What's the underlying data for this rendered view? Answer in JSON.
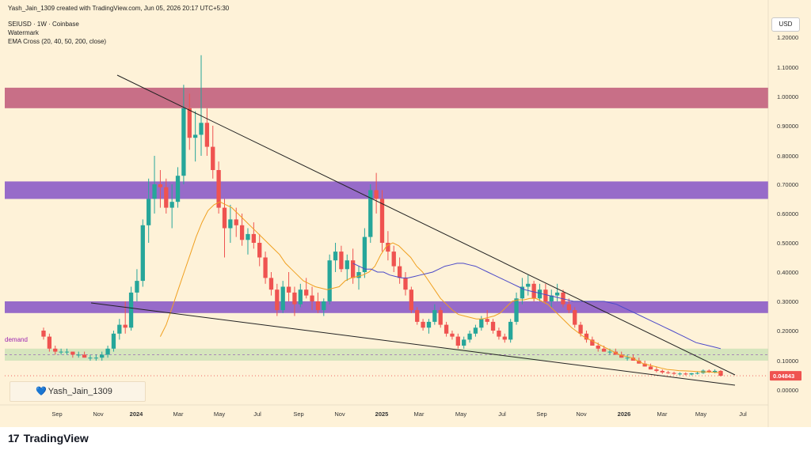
{
  "header": {
    "attribution": "Yash_Jain_1309 created with TradingView.com, Jun 05, 2026 20:17 UTC+5:30",
    "symbol_line": "SEIUSD · 1W · Coinbase",
    "watermark_label": "Watermark",
    "indicator_label": "EMA Cross (20, 40, 50, 200, close)"
  },
  "currency_button": "USD",
  "author_badge": {
    "icon": "blue-heart-icon",
    "text": "Yash_Jain_1309"
  },
  "logo_text": "TradingView",
  "colors": {
    "background": "#fef2d8",
    "bull_candle": "#26a69a",
    "bear_candle": "#ef5350",
    "ema_fast": "#f0a020",
    "ema_slow": "#4b49c8",
    "resistance_zone_top": "#c2607e",
    "resistance_zone_mid": "#8c5cc8",
    "support_zone": "#8c5cc8",
    "demand_zone": "#cfe3b8",
    "price_tag": "#ef5350"
  },
  "chart_data": {
    "type": "candlestick",
    "symbol": "SEIUSD",
    "interval": "1W",
    "exchange": "Coinbase",
    "y_axis": {
      "ticks": [
        "1.20000",
        "1.10000",
        "1.00000",
        "0.90000",
        "0.80000",
        "0.70000",
        "0.60000",
        "0.50000",
        "0.40000",
        "0.30000",
        "0.20000",
        "0.10000",
        "0.00000"
      ],
      "range": [
        -0.01,
        1.27
      ],
      "scale": "log-like"
    },
    "x_axis": {
      "ticks": [
        "Sep",
        "Nov",
        "2024",
        "Mar",
        "May",
        "Jul",
        "Sep",
        "Nov",
        "2025",
        "Mar",
        "May",
        "Jul",
        "Sep",
        "Nov",
        "2026",
        "Mar",
        "May",
        "Jul"
      ]
    },
    "last_price": "0.04843",
    "zones": [
      {
        "name": "resistance-zone-top",
        "from": 0.96,
        "to": 1.03
      },
      {
        "name": "resistance-zone-mid",
        "from": 0.65,
        "to": 0.71
      },
      {
        "name": "support-zone",
        "from": 0.26,
        "to": 0.3
      },
      {
        "name": "demand-zone",
        "label": "demand",
        "from": 0.1,
        "to": 0.14
      }
    ],
    "candles": [
      [
        0.2,
        0.21,
        0.17,
        0.18
      ],
      [
        0.18,
        0.19,
        0.13,
        0.14
      ],
      [
        0.14,
        0.15,
        0.12,
        0.13
      ],
      [
        0.13,
        0.14,
        0.12,
        0.13
      ],
      [
        0.13,
        0.14,
        0.12,
        0.13
      ],
      [
        0.13,
        0.13,
        0.11,
        0.12
      ],
      [
        0.12,
        0.13,
        0.11,
        0.12
      ],
      [
        0.12,
        0.13,
        0.11,
        0.11
      ],
      [
        0.11,
        0.12,
        0.1,
        0.11
      ],
      [
        0.11,
        0.12,
        0.1,
        0.11
      ],
      [
        0.11,
        0.13,
        0.1,
        0.12
      ],
      [
        0.12,
        0.15,
        0.11,
        0.14
      ],
      [
        0.14,
        0.2,
        0.13,
        0.19
      ],
      [
        0.19,
        0.24,
        0.17,
        0.22
      ],
      [
        0.22,
        0.3,
        0.19,
        0.21
      ],
      [
        0.21,
        0.35,
        0.2,
        0.33
      ],
      [
        0.33,
        0.41,
        0.3,
        0.37
      ],
      [
        0.37,
        0.58,
        0.35,
        0.56
      ],
      [
        0.56,
        0.72,
        0.5,
        0.65
      ],
      [
        0.65,
        0.8,
        0.6,
        0.7
      ],
      [
        0.7,
        0.75,
        0.62,
        0.69
      ],
      [
        0.69,
        0.72,
        0.6,
        0.62
      ],
      [
        0.62,
        0.7,
        0.55,
        0.64
      ],
      [
        0.64,
        0.76,
        0.62,
        0.73
      ],
      [
        0.73,
        1.04,
        0.7,
        0.96
      ],
      [
        0.96,
        1.01,
        0.82,
        0.86
      ],
      [
        0.86,
        0.95,
        0.78,
        0.87
      ],
      [
        0.87,
        1.14,
        0.8,
        0.91
      ],
      [
        0.91,
        0.96,
        0.8,
        0.83
      ],
      [
        0.83,
        0.9,
        0.72,
        0.75
      ],
      [
        0.75,
        0.78,
        0.6,
        0.62
      ],
      [
        0.62,
        0.65,
        0.45,
        0.55
      ],
      [
        0.55,
        0.63,
        0.5,
        0.58
      ],
      [
        0.58,
        0.62,
        0.52,
        0.56
      ],
      [
        0.56,
        0.6,
        0.49,
        0.51
      ],
      [
        0.51,
        0.55,
        0.46,
        0.53
      ],
      [
        0.53,
        0.57,
        0.48,
        0.5
      ],
      [
        0.5,
        0.53,
        0.42,
        0.45
      ],
      [
        0.45,
        0.47,
        0.36,
        0.38
      ],
      [
        0.38,
        0.4,
        0.32,
        0.34
      ],
      [
        0.34,
        0.36,
        0.25,
        0.27
      ],
      [
        0.27,
        0.37,
        0.26,
        0.35
      ],
      [
        0.35,
        0.4,
        0.3,
        0.33
      ],
      [
        0.33,
        0.35,
        0.25,
        0.29
      ],
      [
        0.29,
        0.36,
        0.28,
        0.34
      ],
      [
        0.34,
        0.38,
        0.31,
        0.32
      ],
      [
        0.32,
        0.35,
        0.27,
        0.3
      ],
      [
        0.3,
        0.33,
        0.26,
        0.27
      ],
      [
        0.27,
        0.31,
        0.25,
        0.3
      ],
      [
        0.3,
        0.46,
        0.29,
        0.44
      ],
      [
        0.44,
        0.5,
        0.4,
        0.47
      ],
      [
        0.47,
        0.49,
        0.4,
        0.41
      ],
      [
        0.41,
        0.46,
        0.37,
        0.44
      ],
      [
        0.44,
        0.48,
        0.36,
        0.38
      ],
      [
        0.38,
        0.42,
        0.34,
        0.4
      ],
      [
        0.4,
        0.55,
        0.38,
        0.52
      ],
      [
        0.52,
        0.7,
        0.5,
        0.68
      ],
      [
        0.68,
        0.74,
        0.6,
        0.65
      ],
      [
        0.65,
        0.68,
        0.47,
        0.5
      ],
      [
        0.5,
        0.54,
        0.44,
        0.47
      ],
      [
        0.47,
        0.49,
        0.4,
        0.42
      ],
      [
        0.42,
        0.45,
        0.36,
        0.38
      ],
      [
        0.38,
        0.4,
        0.32,
        0.34
      ],
      [
        0.34,
        0.35,
        0.26,
        0.27
      ],
      [
        0.27,
        0.28,
        0.22,
        0.23
      ],
      [
        0.23,
        0.24,
        0.2,
        0.21
      ],
      [
        0.21,
        0.24,
        0.19,
        0.23
      ],
      [
        0.23,
        0.29,
        0.22,
        0.27
      ],
      [
        0.27,
        0.28,
        0.21,
        0.22
      ],
      [
        0.22,
        0.23,
        0.18,
        0.19
      ],
      [
        0.19,
        0.2,
        0.17,
        0.18
      ],
      [
        0.18,
        0.19,
        0.14,
        0.15
      ],
      [
        0.15,
        0.18,
        0.14,
        0.17
      ],
      [
        0.17,
        0.2,
        0.16,
        0.19
      ],
      [
        0.19,
        0.22,
        0.18,
        0.21
      ],
      [
        0.21,
        0.25,
        0.2,
        0.24
      ],
      [
        0.24,
        0.27,
        0.22,
        0.23
      ],
      [
        0.23,
        0.24,
        0.19,
        0.2
      ],
      [
        0.2,
        0.21,
        0.17,
        0.18
      ],
      [
        0.18,
        0.19,
        0.16,
        0.17
      ],
      [
        0.17,
        0.24,
        0.16,
        0.23
      ],
      [
        0.23,
        0.33,
        0.22,
        0.31
      ],
      [
        0.31,
        0.38,
        0.29,
        0.35
      ],
      [
        0.35,
        0.39,
        0.32,
        0.36
      ],
      [
        0.36,
        0.37,
        0.3,
        0.31
      ],
      [
        0.31,
        0.36,
        0.3,
        0.34
      ],
      [
        0.34,
        0.36,
        0.29,
        0.3
      ],
      [
        0.3,
        0.34,
        0.28,
        0.32
      ],
      [
        0.32,
        0.36,
        0.3,
        0.33
      ],
      [
        0.33,
        0.34,
        0.28,
        0.29
      ],
      [
        0.29,
        0.31,
        0.26,
        0.27
      ],
      [
        0.27,
        0.28,
        0.21,
        0.22
      ],
      [
        0.22,
        0.23,
        0.18,
        0.19
      ],
      [
        0.19,
        0.2,
        0.16,
        0.17
      ],
      [
        0.17,
        0.18,
        0.15,
        0.15
      ],
      [
        0.15,
        0.16,
        0.13,
        0.14
      ],
      [
        0.14,
        0.15,
        0.13,
        0.13
      ],
      [
        0.13,
        0.14,
        0.12,
        0.13
      ],
      [
        0.13,
        0.14,
        0.12,
        0.12
      ],
      [
        0.12,
        0.13,
        0.11,
        0.11
      ],
      [
        0.11,
        0.12,
        0.1,
        0.11
      ],
      [
        0.11,
        0.12,
        0.1,
        0.1
      ],
      [
        0.1,
        0.11,
        0.09,
        0.09
      ],
      [
        0.09,
        0.1,
        0.08,
        0.08
      ],
      [
        0.08,
        0.09,
        0.07,
        0.07
      ],
      [
        0.07,
        0.08,
        0.06,
        0.065
      ],
      [
        0.065,
        0.07,
        0.055,
        0.06
      ],
      [
        0.06,
        0.065,
        0.055,
        0.058
      ],
      [
        0.058,
        0.062,
        0.052,
        0.055
      ],
      [
        0.055,
        0.06,
        0.05,
        0.056
      ],
      [
        0.056,
        0.06,
        0.05,
        0.053
      ],
      [
        0.053,
        0.058,
        0.05,
        0.057
      ],
      [
        0.057,
        0.062,
        0.053,
        0.058
      ],
      [
        0.058,
        0.07,
        0.055,
        0.066
      ],
      [
        0.066,
        0.07,
        0.058,
        0.06
      ],
      [
        0.06,
        0.07,
        0.057,
        0.065
      ],
      [
        0.065,
        0.068,
        0.046,
        0.04843
      ]
    ],
    "ema_fast": [
      0.18,
      0.22,
      0.28,
      0.34,
      0.4,
      0.46,
      0.52,
      0.57,
      0.61,
      0.63,
      0.64,
      0.63,
      0.62,
      0.6,
      0.58,
      0.56,
      0.54,
      0.52,
      0.5,
      0.48,
      0.46,
      0.43,
      0.41,
      0.39,
      0.37,
      0.36,
      0.35,
      0.345,
      0.34,
      0.345,
      0.35,
      0.37,
      0.38,
      0.385,
      0.39,
      0.4,
      0.42,
      0.46,
      0.49,
      0.5,
      0.49,
      0.47,
      0.45,
      0.42,
      0.4,
      0.37,
      0.34,
      0.31,
      0.29,
      0.27,
      0.255,
      0.25,
      0.245,
      0.24,
      0.24,
      0.245,
      0.25,
      0.26,
      0.28,
      0.3,
      0.305,
      0.305,
      0.31,
      0.31,
      0.3,
      0.29,
      0.27,
      0.25,
      0.23,
      0.21,
      0.195,
      0.18,
      0.17,
      0.16,
      0.15,
      0.14,
      0.13,
      0.12,
      0.115,
      0.11,
      0.1,
      0.09,
      0.085,
      0.08,
      0.075,
      0.07,
      0.068,
      0.066,
      0.065,
      0.064,
      0.063,
      0.062,
      0.061,
      0.06,
      0.059
    ],
    "ema_slow": [
      0.43,
      0.42,
      0.41,
      0.41,
      0.4,
      0.4,
      0.39,
      0.385,
      0.38,
      0.38,
      0.385,
      0.39,
      0.395,
      0.4,
      0.41,
      0.42,
      0.425,
      0.43,
      0.43,
      0.425,
      0.42,
      0.41,
      0.4,
      0.39,
      0.38,
      0.37,
      0.36,
      0.35,
      0.34,
      0.335,
      0.33,
      0.325,
      0.32,
      0.315,
      0.31,
      0.305,
      0.3,
      0.3,
      0.3,
      0.3,
      0.3,
      0.3,
      0.295,
      0.29,
      0.28,
      0.27,
      0.26,
      0.25,
      0.24,
      0.23,
      0.22,
      0.21,
      0.2,
      0.19,
      0.18,
      0.17,
      0.16,
      0.155,
      0.15,
      0.145,
      0.14
    ]
  }
}
